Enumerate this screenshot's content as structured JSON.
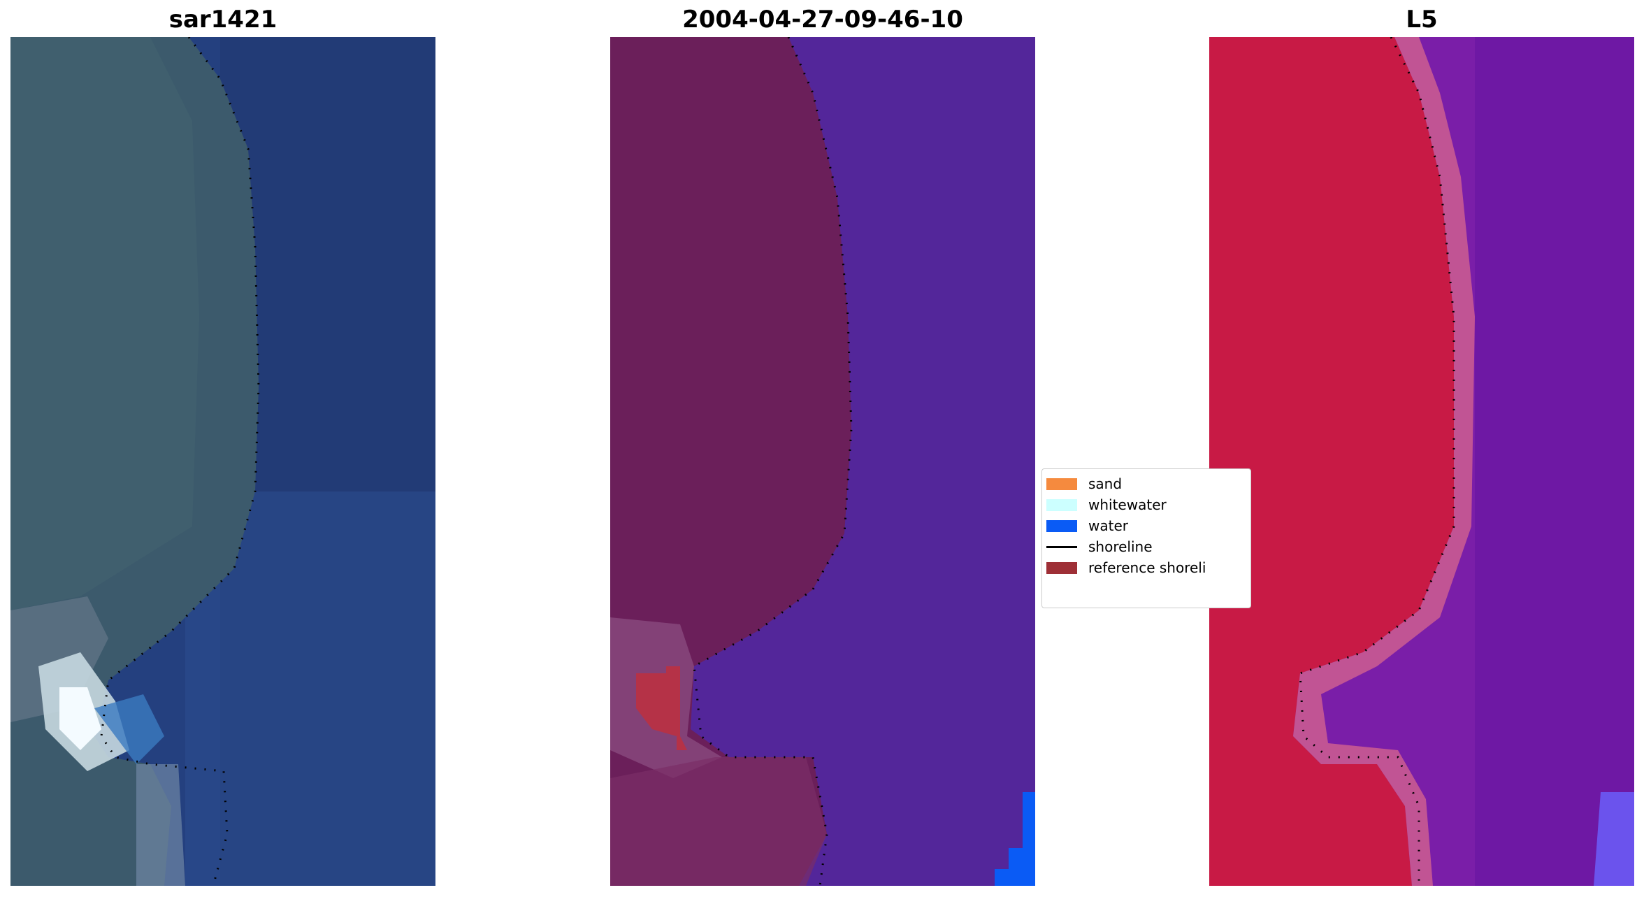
{
  "panels": [
    {
      "title": "sar1421",
      "kind": "rgb"
    },
    {
      "title": "2004-04-27-09-46-10",
      "kind": "classified"
    },
    {
      "title": "L5",
      "kind": "index"
    }
  ],
  "legend": {
    "items": [
      {
        "label": "sand",
        "color": "#f58a3e",
        "type": "patch"
      },
      {
        "label": "whitewater",
        "color": "#ccffff",
        "type": "patch"
      },
      {
        "label": "water",
        "color": "#0a5bf5",
        "type": "patch"
      },
      {
        "label": "shoreline",
        "color": "#000000",
        "type": "line"
      },
      {
        "label": "reference shoreli",
        "color": "#9e2f36",
        "type": "patch"
      }
    ]
  },
  "colors": {
    "land_rgb": "#3c5a6c",
    "ocean_rgb": "#24407f",
    "land_classified": "#6b1f5a",
    "ocean_classified": "#53269a",
    "sand_patch": "#b53247",
    "water_corner": "#0a5bf5",
    "land_index": "#c81a45",
    "ocean_index": "#7a1ea8"
  }
}
